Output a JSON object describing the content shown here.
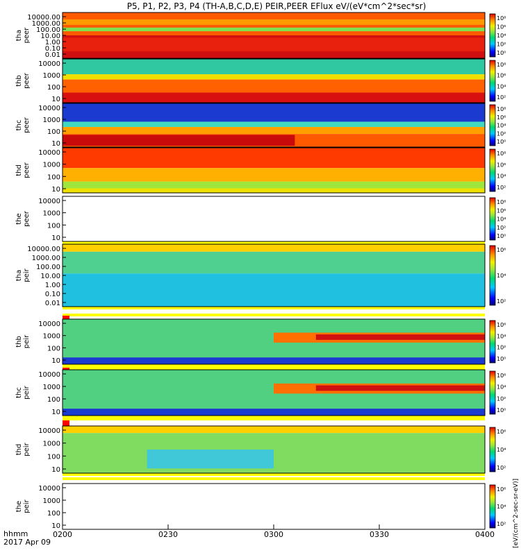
{
  "title": "P5, P1, P2, P3, P4 (TH-A,B,C,D,E) PEIR,PEER EFlux eV/(eV*cm^2*sec*sr)",
  "colorbar_label": "[eV/(cm^2-sec-sr-eV)]",
  "bottom": {
    "axis_label": "hhmm",
    "date": "2017 Apr 09",
    "ticks": [
      "0200",
      "0230",
      "0300",
      "0330",
      "0400"
    ]
  },
  "chart_data": {
    "type": "heatmap",
    "x_range": [
      "02:00",
      "04:00"
    ],
    "panels": [
      {
        "label": "tha\npeer",
        "yticks": [
          "10000.00",
          "1000.00",
          "100.00",
          "10.00",
          "1.00",
          "0.10",
          "0.01"
        ],
        "cbar_ticks": [
          "10⁸",
          "10⁶",
          "10⁴",
          "10²",
          "10⁰"
        ],
        "has_data": true
      },
      {
        "label": "thb\npeer",
        "yticks": [
          "10000",
          "1000",
          "100",
          "10"
        ],
        "cbar_ticks": [
          "10⁸",
          "10⁶",
          "10⁴",
          "10²"
        ],
        "has_data": true
      },
      {
        "label": "thc\npeer",
        "yticks": [
          "10000",
          "1000",
          "100",
          "10"
        ],
        "cbar_ticks": [
          "10⁸",
          "10⁶",
          "10⁴",
          "10²",
          "10⁰"
        ],
        "has_data": true
      },
      {
        "label": "thd\npeer",
        "yticks": [
          "10000",
          "1000",
          "100",
          "10"
        ],
        "cbar_ticks": [
          "10⁸",
          "10⁶",
          "10⁴",
          "10²"
        ],
        "has_data": true
      },
      {
        "label": "the\npeer",
        "yticks": [
          "10000",
          "1000",
          "100",
          "10"
        ],
        "cbar_ticks": [
          "10⁸",
          "10⁶",
          "10⁴",
          "10²",
          "10⁰"
        ],
        "has_data": false
      },
      {
        "label": "tha\npeir",
        "yticks": [
          "10000.00",
          "1000.00",
          "100.00",
          "10.00",
          "1.00",
          "0.10",
          "0.01"
        ],
        "cbar_ticks": [
          "10⁶",
          "10⁴",
          "10²"
        ],
        "has_data": true
      },
      {
        "label": "thb\npeir",
        "yticks": [
          "10000",
          "1000",
          "100",
          "10"
        ],
        "cbar_ticks": [
          "10⁶",
          "10⁴",
          "10²",
          "10⁰"
        ],
        "has_data": true
      },
      {
        "label": "thc\npeir",
        "yticks": [
          "10000",
          "1000",
          "100",
          "10"
        ],
        "cbar_ticks": [
          "10⁶",
          "10⁴",
          "10²",
          "10⁰"
        ],
        "has_data": true
      },
      {
        "label": "thd\npeir",
        "yticks": [
          "10000",
          "1000",
          "100",
          "10"
        ],
        "cbar_ticks": [
          "10⁶",
          "10⁴",
          "10²"
        ],
        "has_data": true
      },
      {
        "label": "the\npeir",
        "yticks": [
          "10000",
          "1000",
          "100",
          "10"
        ],
        "cbar_ticks": [
          "10⁶",
          "10⁴",
          "10²"
        ],
        "has_data": false
      }
    ]
  }
}
